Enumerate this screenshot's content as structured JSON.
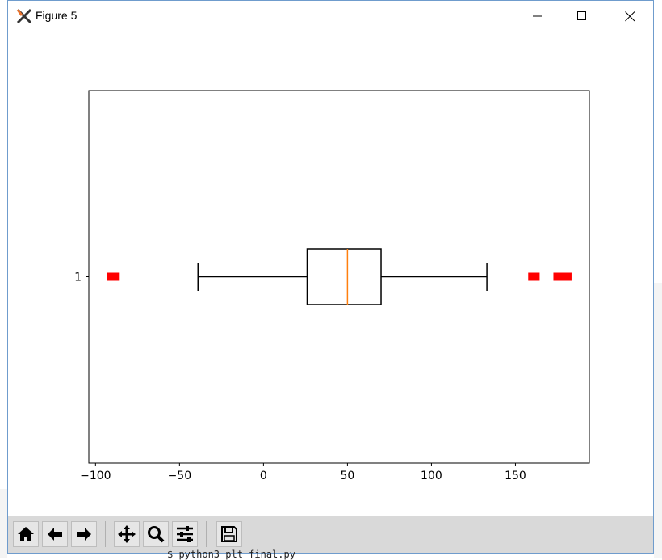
{
  "window": {
    "title": "Figure 5"
  },
  "terminal": {
    "command": "$ python3 plt final.py"
  },
  "toolbar": {
    "buttons": [
      {
        "name": "home-button",
        "icon": "home-icon"
      },
      {
        "name": "back-button",
        "icon": "arrow-left-icon"
      },
      {
        "name": "forward-button",
        "icon": "arrow-right-icon"
      },
      {
        "name": "pan-button",
        "icon": "move-icon"
      },
      {
        "name": "zoom-button",
        "icon": "magnifier-icon"
      },
      {
        "name": "configure-subplots-button",
        "icon": "sliders-icon"
      },
      {
        "name": "save-button",
        "icon": "floppy-disk-icon"
      }
    ]
  },
  "chart_data": {
    "type": "boxplot",
    "orientation": "horizontal",
    "categories": [
      "1"
    ],
    "x_ticks": [
      -100,
      -50,
      0,
      50,
      100,
      150
    ],
    "x_tick_labels": [
      "−100",
      "−50",
      "0",
      "50",
      "100",
      "150"
    ],
    "xlim": [
      -104,
      194
    ],
    "box": {
      "whisker_low": -39,
      "q1": 26,
      "median": 50,
      "q3": 70,
      "whisker_high": 133
    },
    "outliers": [
      -91,
      -88,
      160,
      162,
      175,
      177,
      179,
      181
    ],
    "colors": {
      "median": "#ff7f0e",
      "outlier": "#ff0000",
      "box": "#000000"
    }
  }
}
